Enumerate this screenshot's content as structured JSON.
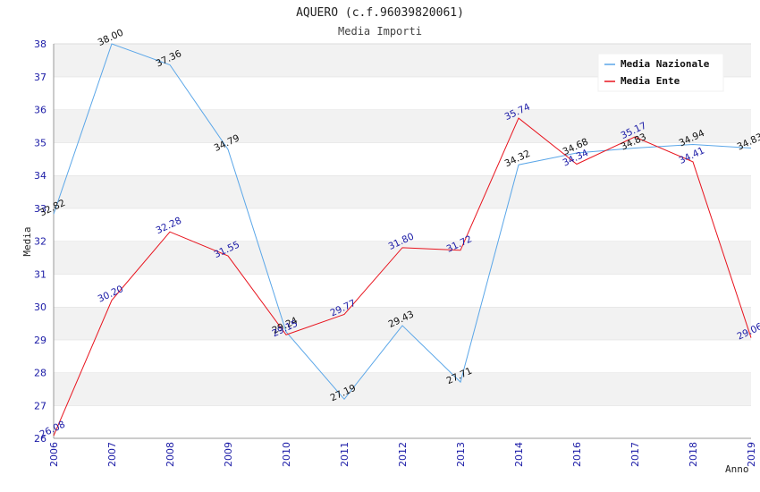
{
  "chart_data": {
    "type": "line",
    "title": "AQUERO (c.f.96039820061)",
    "subtitle": "Media Importi",
    "xlabel": "Anno",
    "ylabel": "Media",
    "ylim": [
      26,
      38
    ],
    "yticks": [
      "26",
      "27",
      "28",
      "29",
      "30",
      "31",
      "32",
      "33",
      "34",
      "35",
      "36",
      "37",
      "38"
    ],
    "categories": [
      "2006",
      "2007",
      "2008",
      "2009",
      "2010",
      "2011",
      "2012",
      "2013",
      "2014",
      "2016",
      "2017",
      "2018",
      "2019"
    ],
    "series": [
      {
        "name": "Media Nazionale",
        "color": "#5aa6e8",
        "label_color": "#111111",
        "values": [
          32.82,
          38.0,
          37.36,
          34.79,
          29.24,
          27.19,
          29.43,
          27.71,
          34.32,
          34.68,
          34.83,
          34.94,
          34.83
        ],
        "labels": [
          "32.82",
          "38.00",
          "37.36",
          "34.79",
          "29.24",
          "27.19",
          "29.43",
          "27.71",
          "34.32",
          "34.68",
          "34.83",
          "34.94",
          "34.83"
        ]
      },
      {
        "name": "Media Ente",
        "color": "#e8141e",
        "label_color": "#1a1aa6",
        "values": [
          26.08,
          30.2,
          32.28,
          31.55,
          29.15,
          29.77,
          31.8,
          31.72,
          35.74,
          34.34,
          35.17,
          34.41,
          29.06
        ],
        "labels": [
          "26.08",
          "30.20",
          "32.28",
          "31.55",
          "29.15",
          "29.77",
          "31.80",
          "31.72",
          "35.74",
          "34.34",
          "35.17",
          "34.41",
          "29.06"
        ]
      }
    ],
    "legend_position": "top-right",
    "grid": true
  }
}
